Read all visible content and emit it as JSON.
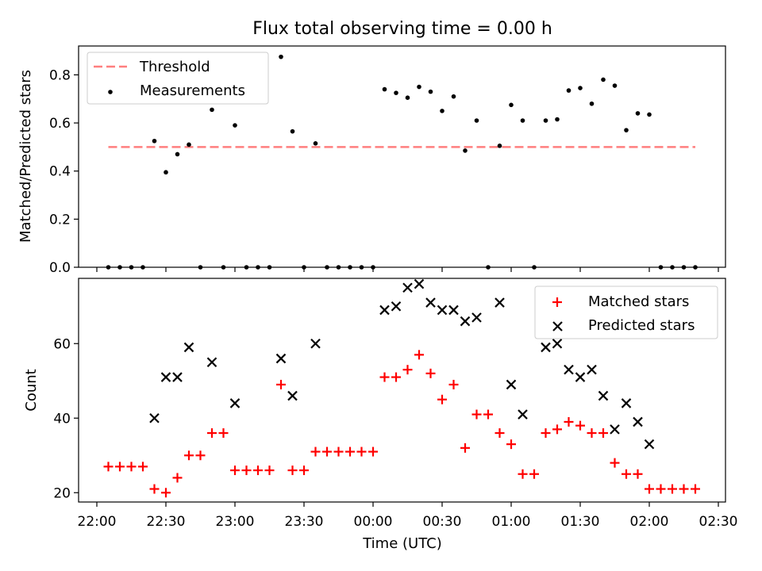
{
  "title": "Flux total observing time = 0.00 h",
  "chart_data": [
    {
      "type": "scatter",
      "ylabel": "Matched/Predicted stars",
      "ylim": [
        0,
        0.92
      ],
      "yticks": [
        0.0,
        0.2,
        0.4,
        0.6,
        0.8
      ],
      "ytick_labels": [
        "0.0",
        "0.2",
        "0.4",
        "0.6",
        "0.8"
      ],
      "grid": false,
      "legend_position": "top-left",
      "threshold": {
        "name": "Threshold",
        "value": 0.5,
        "x_start": "22:05",
        "x_end": "02:20",
        "color": "#ff7f7f"
      },
      "series": [
        {
          "name": "Measurements",
          "color": "#000000",
          "marker": "dot",
          "x": [
            "22:05",
            "22:10",
            "22:15",
            "22:20",
            "22:25",
            "22:30",
            "22:35",
            "22:40",
            "22:45",
            "22:50",
            "22:55",
            "23:00",
            "23:05",
            "23:10",
            "23:15",
            "23:20",
            "23:25",
            "23:30",
            "23:35",
            "23:40",
            "23:45",
            "23:50",
            "23:55",
            "00:00",
            "00:05",
            "00:10",
            "00:15",
            "00:20",
            "00:25",
            "00:30",
            "00:35",
            "00:40",
            "00:45",
            "00:50",
            "00:55",
            "01:00",
            "01:05",
            "01:10",
            "01:15",
            "01:20",
            "01:25",
            "01:30",
            "01:35",
            "01:40",
            "01:45",
            "01:50",
            "01:55",
            "02:00",
            "02:05",
            "02:10",
            "02:15",
            "02:20"
          ],
          "values": [
            0,
            0,
            0,
            0,
            0.525,
            0.395,
            0.47,
            0.51,
            0,
            0.655,
            0,
            0.59,
            0,
            0,
            0,
            0.875,
            0.565,
            0,
            0.515,
            0,
            0,
            0,
            0,
            0,
            0.74,
            0.725,
            0.705,
            0.75,
            0.73,
            0.65,
            0.71,
            0.485,
            0.61,
            0,
            0.505,
            0.675,
            0.61,
            0,
            0.61,
            0.615,
            0.735,
            0.745,
            0.68,
            0.78,
            0.755,
            0.57,
            0.64,
            0.635,
            0,
            0,
            0,
            0
          ]
        }
      ]
    },
    {
      "type": "scatter",
      "xlabel": "Time (UTC)",
      "ylabel": "Count",
      "ylim": [
        17.5,
        77.5
      ],
      "yticks": [
        20,
        40,
        60
      ],
      "ytick_labels": [
        "20",
        "40",
        "60"
      ],
      "x_tick_labels": [
        "22:00",
        "22:30",
        "23:00",
        "23:30",
        "00:00",
        "00:30",
        "01:00",
        "01:30",
        "02:00",
        "02:30"
      ],
      "grid": false,
      "legend_position": "top-right",
      "series": [
        {
          "name": "Matched stars",
          "color": "#ff0000",
          "marker": "plus",
          "x": [
            "22:05",
            "22:10",
            "22:15",
            "22:20",
            "22:25",
            "22:30",
            "22:35",
            "22:40",
            "22:45",
            "22:50",
            "22:55",
            "23:00",
            "23:05",
            "23:10",
            "23:15",
            "23:20",
            "23:25",
            "23:30",
            "23:35",
            "23:40",
            "23:45",
            "23:50",
            "23:55",
            "00:00",
            "00:05",
            "00:10",
            "00:15",
            "00:20",
            "00:25",
            "00:30",
            "00:35",
            "00:40",
            "00:45",
            "00:50",
            "00:55",
            "01:00",
            "01:05",
            "01:10",
            "01:15",
            "01:20",
            "01:25",
            "01:30",
            "01:35",
            "01:40",
            "01:45",
            "01:50",
            "01:55",
            "02:00",
            "02:05",
            "02:10",
            "02:15",
            "02:20"
          ],
          "values": [
            27,
            27,
            27,
            27,
            21,
            20,
            24,
            30,
            30,
            36,
            36,
            26,
            26,
            26,
            26,
            49,
            26,
            26,
            31,
            31,
            31,
            31,
            31,
            31,
            51,
            51,
            53,
            57,
            52,
            45,
            49,
            32,
            41,
            41,
            36,
            33,
            25,
            25,
            36,
            37,
            39,
            38,
            36,
            36,
            28,
            25,
            25,
            21,
            21,
            21,
            21,
            21
          ]
        },
        {
          "name": "Predicted stars",
          "color": "#000000",
          "marker": "x",
          "x": [
            "22:25",
            "22:30",
            "22:35",
            "22:40",
            "22:50",
            "23:00",
            "23:20",
            "23:25",
            "23:35",
            "00:05",
            "00:10",
            "00:15",
            "00:20",
            "00:25",
            "00:30",
            "00:35",
            "00:40",
            "00:45",
            "00:55",
            "01:00",
            "01:05",
            "01:15",
            "01:20",
            "01:25",
            "01:30",
            "01:35",
            "01:40",
            "01:45",
            "01:50",
            "01:55",
            "02:00"
          ],
          "values": [
            40,
            51,
            51,
            59,
            55,
            44,
            56,
            46,
            60,
            69,
            70,
            75,
            76,
            71,
            69,
            69,
            66,
            67,
            71,
            49,
            41,
            59,
            60,
            53,
            51,
            53,
            46,
            37,
            44,
            39,
            33
          ]
        }
      ]
    }
  ]
}
